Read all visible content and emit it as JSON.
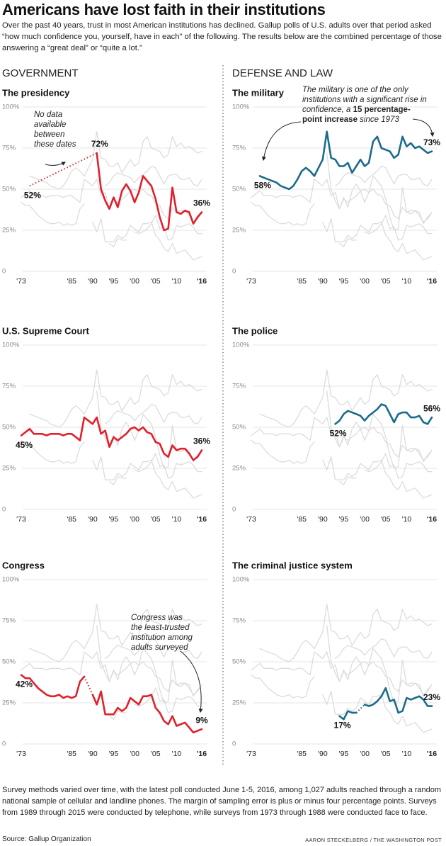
{
  "title": "Americans have lost faith in their institutions",
  "subtitle": "Over the past 40 years, trust in most American institutions has declined. Gallup polls of U.S. adults over that period asked “how much confidence you, yourself, have in each” of the following. The results below are the combined percentage of those answering a “great deal” or “quite a lot.”",
  "sections": [
    "GOVERNMENT",
    "DEFENSE AND LAW"
  ],
  "chart_data": [
    {
      "type": "line",
      "title": "The presidency",
      "x": [
        1973,
        1974,
        1975,
        1976,
        1977,
        1978,
        1979,
        1980,
        1981,
        1982,
        1983,
        1984,
        1985,
        1986,
        1987,
        1988,
        1989,
        1990,
        1991,
        1992,
        1993,
        1994,
        1995,
        1996,
        1997,
        1998,
        1999,
        2000,
        2001,
        2002,
        2003,
        2004,
        2005,
        2006,
        2007,
        2008,
        2009,
        2010,
        2011,
        2012,
        2013,
        2014,
        2015,
        2016
      ],
      "xlim": [
        1973,
        2016
      ],
      "xticks": [
        {
          "value": 1973,
          "label": "'73"
        },
        {
          "value": 1985,
          "label": "'85"
        },
        {
          "value": 1990,
          "label": "'90"
        },
        {
          "value": 1995,
          "label": "'95"
        },
        {
          "value": 2000,
          "label": "'00"
        },
        {
          "value": 2005,
          "label": "'05"
        },
        {
          "value": 2010,
          "label": "'10"
        },
        {
          "value": 2016,
          "label": "'16"
        }
      ],
      "ylim": [
        0,
        100
      ],
      "yticks": [
        {
          "value": 100,
          "label": "100%"
        },
        {
          "value": 75,
          "label": "75%"
        },
        {
          "value": 50,
          "label": "50%"
        },
        {
          "value": 25,
          "label": "25%"
        },
        0
      ],
      "grid": true,
      "series": [
        {
          "color": "#e0202b",
          "values": [
            null,
            null,
            52,
            null,
            null,
            null,
            null,
            null,
            null,
            null,
            null,
            null,
            null,
            null,
            null,
            null,
            null,
            null,
            72,
            50,
            43,
            38,
            45,
            39,
            49,
            53,
            49,
            42,
            48,
            58,
            55,
            52,
            44,
            33,
            25,
            26,
            51,
            36,
            35,
            37,
            36,
            29,
            33,
            36
          ],
          "value_labels": {
            "2": "52%",
            "18": "72%",
            "43": "36%"
          }
        }
      ],
      "annotations": [
        {
          "lines": [
            [
              "No data"
            ],
            [
              "available"
            ],
            [
              "between"
            ],
            [
              "these dates"
            ]
          ]
        }
      ]
    },
    {
      "type": "line",
      "title": "The military",
      "x": [
        1973,
        1974,
        1975,
        1976,
        1977,
        1978,
        1979,
        1980,
        1981,
        1982,
        1983,
        1984,
        1985,
        1986,
        1987,
        1988,
        1989,
        1990,
        1991,
        1992,
        1993,
        1994,
        1995,
        1996,
        1997,
        1998,
        1999,
        2000,
        2001,
        2002,
        2003,
        2004,
        2005,
        2006,
        2007,
        2008,
        2009,
        2010,
        2011,
        2012,
        2013,
        2014,
        2015,
        2016
      ],
      "xlim": [
        1973,
        2016
      ],
      "xticks": [
        {
          "value": 1973,
          "label": "'73"
        },
        {
          "value": 1985,
          "label": "'85"
        },
        {
          "value": 1990,
          "label": "'90"
        },
        {
          "value": 1995,
          "label": "'95"
        },
        {
          "value": 2000,
          "label": "'00"
        },
        {
          "value": 2005,
          "label": "'05"
        },
        {
          "value": 2010,
          "label": "'10"
        },
        {
          "value": 2016,
          "label": "'16"
        }
      ],
      "ylim": [
        0,
        100
      ],
      "yticks": [
        {
          "value": 100,
          "label": "100%"
        },
        {
          "value": 75,
          "label": "75%"
        },
        {
          "value": 50,
          "label": "50%"
        },
        {
          "value": 25,
          "label": "25%"
        },
        0
      ],
      "grid": true,
      "series": [
        {
          "color": "#1b6b8c",
          "values": [
            null,
            null,
            58,
            57,
            56,
            55,
            54,
            52,
            51,
            50,
            52,
            56,
            61,
            63,
            61,
            58,
            63,
            68,
            85,
            69,
            68,
            64,
            64,
            66,
            60,
            64,
            68,
            64,
            66,
            79,
            82,
            75,
            74,
            73,
            69,
            71,
            82,
            76,
            78,
            75,
            76,
            74,
            72,
            73
          ],
          "value_labels": {
            "2": "58%",
            "43": "73%"
          }
        }
      ],
      "annotations": [
        {
          "lines": [
            [
              "The military is one of the only"
            ],
            [
              "institutions with a significant rise in"
            ],
            [
              "confidence, a ",
              {
                "text": "15 percentage-",
                "bold": true
              }
            ],
            [
              {
                "text": "point increase",
                "bold": true
              },
              " since 1973"
            ]
          ]
        }
      ]
    },
    {
      "type": "line",
      "title": "U.S. Supreme Court",
      "x": [
        1973,
        1974,
        1975,
        1976,
        1977,
        1978,
        1979,
        1980,
        1981,
        1982,
        1983,
        1984,
        1985,
        1986,
        1987,
        1988,
        1989,
        1990,
        1991,
        1992,
        1993,
        1994,
        1995,
        1996,
        1997,
        1998,
        1999,
        2000,
        2001,
        2002,
        2003,
        2004,
        2005,
        2006,
        2007,
        2008,
        2009,
        2010,
        2011,
        2012,
        2013,
        2014,
        2015,
        2016
      ],
      "xlim": [
        1973,
        2016
      ],
      "xticks": [
        {
          "value": 1973,
          "label": "'73"
        },
        {
          "value": 1985,
          "label": "'85"
        },
        {
          "value": 1990,
          "label": "'90"
        },
        {
          "value": 1995,
          "label": "'95"
        },
        {
          "value": 2000,
          "label": "'00"
        },
        {
          "value": 2005,
          "label": "'05"
        },
        {
          "value": 2010,
          "label": "'10"
        },
        {
          "value": 2016,
          "label": "'16"
        }
      ],
      "ylim": [
        0,
        100
      ],
      "yticks": [
        {
          "value": 100,
          "label": "100%"
        },
        {
          "value": 75,
          "label": "75%"
        },
        {
          "value": 50,
          "label": "50%"
        },
        {
          "value": 25,
          "label": "25%"
        },
        0
      ],
      "grid": true,
      "series": [
        {
          "color": "#e0202b",
          "values": [
            45,
            47,
            49,
            46,
            46,
            46,
            45,
            46,
            46,
            46,
            45,
            46,
            46,
            44,
            42,
            56,
            54,
            52,
            56,
            46,
            48,
            38,
            44,
            42,
            44,
            46,
            49,
            50,
            48,
            50,
            47,
            46,
            41,
            40,
            34,
            32,
            39,
            36,
            37,
            37,
            34,
            30,
            32,
            36
          ],
          "value_labels": {
            "0": "45%",
            "43": "36%"
          }
        }
      ],
      "annotations": []
    },
    {
      "type": "line",
      "title": "The police",
      "x": [
        1973,
        1974,
        1975,
        1976,
        1977,
        1978,
        1979,
        1980,
        1981,
        1982,
        1983,
        1984,
        1985,
        1986,
        1987,
        1988,
        1989,
        1990,
        1991,
        1992,
        1993,
        1994,
        1995,
        1996,
        1997,
        1998,
        1999,
        2000,
        2001,
        2002,
        2003,
        2004,
        2005,
        2006,
        2007,
        2008,
        2009,
        2010,
        2011,
        2012,
        2013,
        2014,
        2015,
        2016
      ],
      "xlim": [
        1973,
        2016
      ],
      "xticks": [
        {
          "value": 1973,
          "label": "'73"
        },
        {
          "value": 1985,
          "label": "'85"
        },
        {
          "value": 1990,
          "label": "'90"
        },
        {
          "value": 1995,
          "label": "'95"
        },
        {
          "value": 2000,
          "label": "'00"
        },
        {
          "value": 2005,
          "label": "'05"
        },
        {
          "value": 2010,
          "label": "'10"
        },
        {
          "value": 2016,
          "label": "'16"
        }
      ],
      "ylim": [
        0,
        100
      ],
      "yticks": [
        {
          "value": 100,
          "label": "100%"
        },
        {
          "value": 75,
          "label": "75%"
        },
        {
          "value": 50,
          "label": "50%"
        },
        {
          "value": 25,
          "label": "25%"
        },
        0
      ],
      "grid": true,
      "series": [
        {
          "color": "#1b6b8c",
          "values": [
            null,
            null,
            null,
            null,
            null,
            null,
            null,
            null,
            null,
            null,
            null,
            null,
            null,
            null,
            null,
            null,
            null,
            null,
            null,
            null,
            52,
            54,
            58,
            60,
            59,
            58,
            57,
            54,
            57,
            59,
            61,
            64,
            63,
            58,
            53,
            58,
            59,
            59,
            56,
            56,
            57,
            53,
            52,
            56
          ],
          "value_labels": {
            "20": "52%",
            "43": "56%"
          }
        }
      ],
      "annotations": []
    },
    {
      "type": "line",
      "title": "Congress",
      "x": [
        1973,
        1974,
        1975,
        1976,
        1977,
        1978,
        1979,
        1980,
        1981,
        1982,
        1983,
        1984,
        1985,
        1986,
        1987,
        1988,
        1989,
        1990,
        1991,
        1992,
        1993,
        1994,
        1995,
        1996,
        1997,
        1998,
        1999,
        2000,
        2001,
        2002,
        2003,
        2004,
        2005,
        2006,
        2007,
        2008,
        2009,
        2010,
        2011,
        2012,
        2013,
        2014,
        2015,
        2016
      ],
      "xlim": [
        1973,
        2016
      ],
      "xticks": [
        {
          "value": 1973,
          "label": "'73"
        },
        {
          "value": 1985,
          "label": "'85"
        },
        {
          "value": 1990,
          "label": "'90"
        },
        {
          "value": 1995,
          "label": "'95"
        },
        {
          "value": 2000,
          "label": "'00"
        },
        {
          "value": 2005,
          "label": "'05"
        },
        {
          "value": 2010,
          "label": "'10"
        },
        {
          "value": 2016,
          "label": "'16"
        }
      ],
      "ylim": [
        0,
        100
      ],
      "yticks": [
        {
          "value": 100,
          "label": "100%"
        },
        {
          "value": 75,
          "label": "75%"
        },
        {
          "value": 50,
          "label": "50%"
        },
        {
          "value": 25,
          "label": "25%"
        },
        0
      ],
      "grid": true,
      "series": [
        {
          "color": "#e0202b",
          "values": [
            42,
            40,
            40,
            37,
            34,
            32,
            30,
            29,
            29,
            30,
            28,
            29,
            28,
            29,
            38,
            41,
            null,
            30,
            24,
            32,
            18,
            18,
            18,
            22,
            20,
            22,
            28,
            26,
            24,
            29,
            29,
            30,
            22,
            19,
            14,
            12,
            17,
            11,
            12,
            13,
            10,
            7,
            8,
            9
          ],
          "value_labels": {
            "0": "42%",
            "43": "9%"
          }
        }
      ],
      "annotations": [
        {
          "lines": [
            [
              "Congress was"
            ],
            [
              "the least-trusted"
            ],
            [
              "institution among"
            ],
            [
              "adults surveyed"
            ]
          ]
        }
      ]
    },
    {
      "type": "line",
      "title": "The criminal justice system",
      "x": [
        1973,
        1974,
        1975,
        1976,
        1977,
        1978,
        1979,
        1980,
        1981,
        1982,
        1983,
        1984,
        1985,
        1986,
        1987,
        1988,
        1989,
        1990,
        1991,
        1992,
        1993,
        1994,
        1995,
        1996,
        1997,
        1998,
        1999,
        2000,
        2001,
        2002,
        2003,
        2004,
        2005,
        2006,
        2007,
        2008,
        2009,
        2010,
        2011,
        2012,
        2013,
        2014,
        2015,
        2016
      ],
      "xlim": [
        1973,
        2016
      ],
      "xticks": [
        {
          "value": 1973,
          "label": "'73"
        },
        {
          "value": 1985,
          "label": "'85"
        },
        {
          "value": 1990,
          "label": "'90"
        },
        {
          "value": 1995,
          "label": "'95"
        },
        {
          "value": 2000,
          "label": "'00"
        },
        {
          "value": 2005,
          "label": "'05"
        },
        {
          "value": 2010,
          "label": "'10"
        },
        {
          "value": 2016,
          "label": "'16"
        }
      ],
      "ylim": [
        0,
        100
      ],
      "yticks": [
        {
          "value": 100,
          "label": "100%"
        },
        {
          "value": 75,
          "label": "75%"
        },
        {
          "value": 50,
          "label": "50%"
        },
        {
          "value": 25,
          "label": "25%"
        },
        0
      ],
      "grid": true,
      "series": [
        {
          "color": "#1b6b8c",
          "values": [
            null,
            null,
            null,
            null,
            null,
            null,
            null,
            null,
            null,
            null,
            null,
            null,
            null,
            null,
            null,
            null,
            null,
            null,
            null,
            null,
            null,
            17,
            15,
            20,
            19,
            19,
            null,
            24,
            23,
            24,
            26,
            29,
            34,
            26,
            27,
            19,
            20,
            28,
            27,
            28,
            29,
            27,
            23,
            23
          ],
          "value_labels": {
            "21": "17%",
            "43": "23%"
          }
        }
      ],
      "annotations": []
    }
  ],
  "note": "Survey methods varied over time, with the latest poll conducted June 1-5, 2016, among 1,027 adults reached through a random national sample of cellular and landline phones. The margin of sampling error is plus or minus four percentage points. Surveys from 1989 through 2015 were conducted by telephone, while surveys from 1973 through 1988 were conducted face to face.",
  "source": "Source: Gallup Organization",
  "credit": "AARON STECKELBERG / THE WASHINGTON POST"
}
